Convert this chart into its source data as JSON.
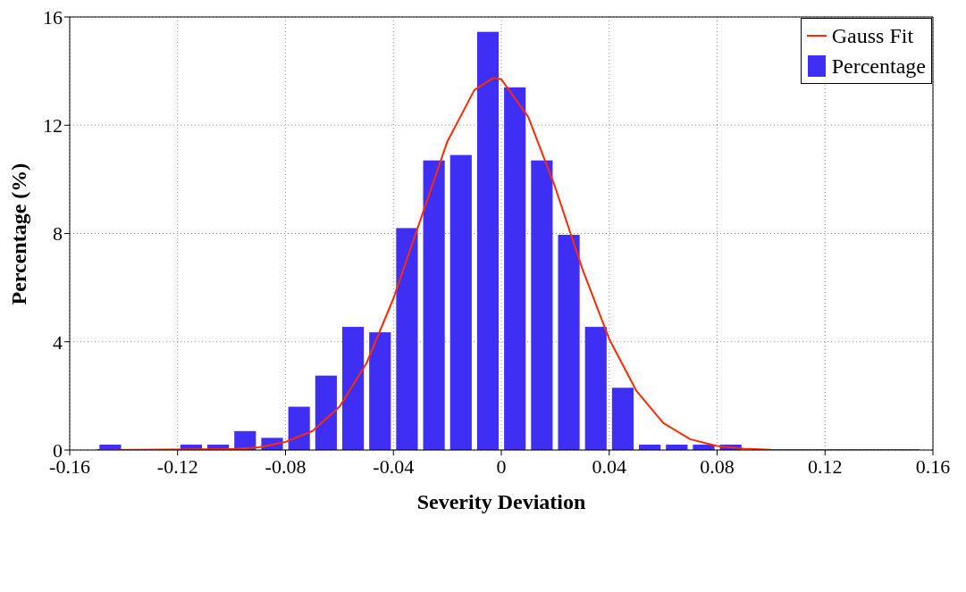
{
  "chart_data": {
    "type": "bar",
    "xlabel": "Severity Deviation",
    "ylabel": "Percentage (%)",
    "xlim": [
      -0.16,
      0.16
    ],
    "xticks": [
      -0.16,
      -0.12,
      -0.08,
      -0.04,
      0,
      0.04,
      0.08,
      0.12,
      0.16
    ],
    "ylim": [
      0,
      16
    ],
    "yticks": [
      0,
      4,
      8,
      12,
      16
    ],
    "grid": true,
    "legend": "top right",
    "series": [
      {
        "name": "Gauss Fit",
        "type": "line",
        "color": "#ff2a00",
        "x": [
          -0.15,
          -0.1,
          -0.09,
          -0.08,
          -0.07,
          -0.06,
          -0.05,
          -0.04,
          -0.03,
          -0.02,
          -0.01,
          -0.003,
          0,
          0.01,
          0.02,
          0.03,
          0.04,
          0.05,
          0.06,
          0.07,
          0.08,
          0.09,
          0.1,
          0.155
        ],
        "values": [
          0,
          0.03,
          0.1,
          0.3,
          0.7,
          1.6,
          3.2,
          5.6,
          8.5,
          11.4,
          13.3,
          13.75,
          13.7,
          12.3,
          9.7,
          6.7,
          4.1,
          2.2,
          1.0,
          0.4,
          0.15,
          0.05,
          0.01,
          0
        ]
      },
      {
        "name": "Percentage",
        "color": "#3f2ff5",
        "x": [
          -0.145,
          -0.115,
          -0.105,
          -0.095,
          -0.085,
          -0.075,
          -0.065,
          -0.055,
          -0.045,
          -0.035,
          -0.025,
          -0.015,
          -0.005,
          0.005,
          0.015,
          0.025,
          0.035,
          0.045,
          0.055,
          0.065,
          0.075,
          0.085
        ],
        "values": [
          0.2,
          0.2,
          0.2,
          0.7,
          0.45,
          1.6,
          2.75,
          4.55,
          4.35,
          8.2,
          10.7,
          10.9,
          15.45,
          13.4,
          10.7,
          7.95,
          4.55,
          2.3,
          0.2,
          0.2,
          0.2,
          0.2
        ]
      }
    ]
  }
}
